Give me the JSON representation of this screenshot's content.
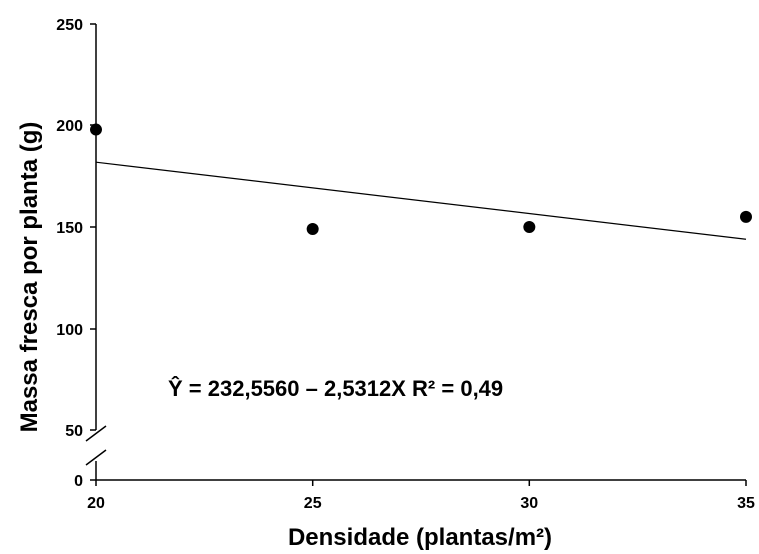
{
  "chart_data": {
    "type": "scatter",
    "title": "",
    "xlabel": "Densidade (plantas/m²)",
    "ylabel": "Massa fresca por planta (g)",
    "xlim": [
      20,
      35
    ],
    "ylim": [
      0,
      250
    ],
    "x_ticks": [
      "20",
      "25",
      "30",
      "35"
    ],
    "y_ticks": [
      "0",
      "50",
      "100",
      "150",
      "200",
      "250"
    ],
    "y_axis_break": true,
    "grid": false,
    "x": [
      20,
      25,
      30,
      35
    ],
    "y": [
      198,
      149,
      150,
      155
    ],
    "regression": {
      "intercept": 232.556,
      "slope": -2.5312,
      "r2": 0.49,
      "equation_label": "Ŷ = 232,5560 – 2,5312X R² = 0,49"
    },
    "colors": {
      "points": "#000000",
      "line": "#000000"
    }
  }
}
